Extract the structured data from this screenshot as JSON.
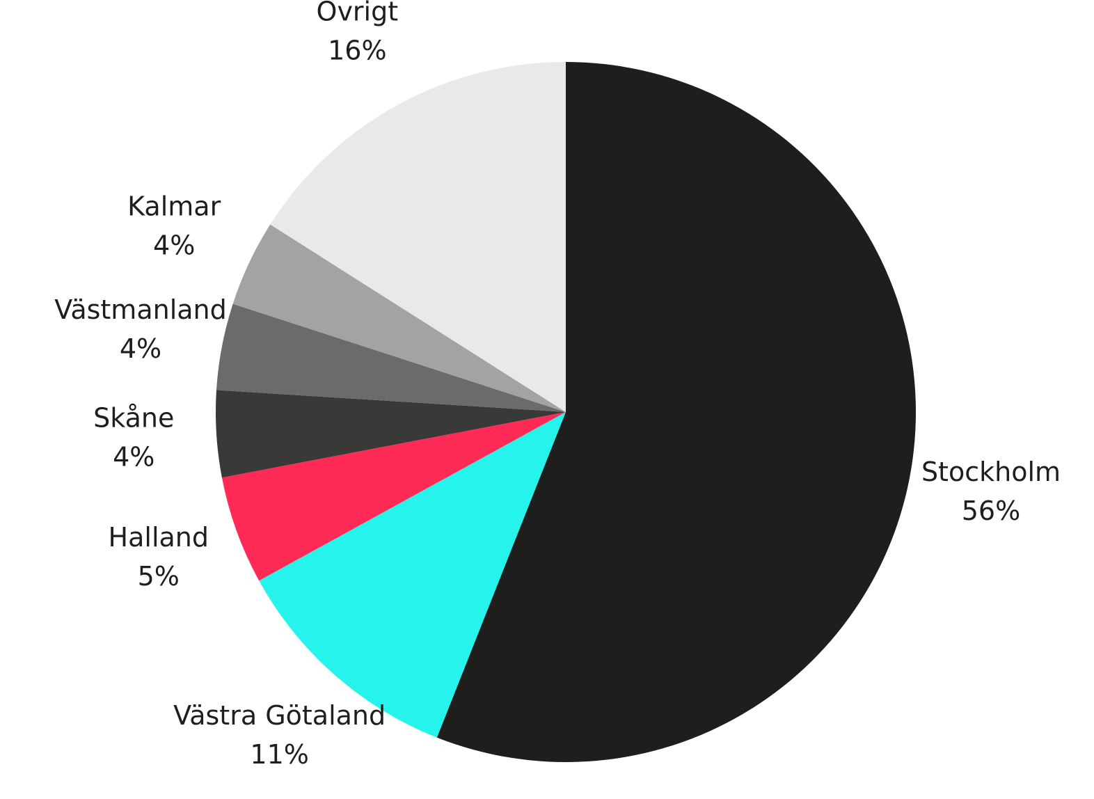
{
  "chart_data": {
    "type": "pie",
    "categories": [
      "Stockholm",
      "Västra Götaland",
      "Halland",
      "Skåne",
      "Västmanland",
      "Kalmar",
      "Övrigt"
    ],
    "values": [
      56,
      11,
      5,
      4,
      4,
      4,
      16
    ],
    "value_labels": [
      "56%",
      "11%",
      "5%",
      "4%",
      "4%",
      "4%",
      "16%"
    ],
    "colors": [
      "#1e1e1c",
      "#26f4ec",
      "#ff2b56",
      "#393937",
      "#6b6b69",
      "#a3a3a1",
      "#e9e9e7"
    ]
  }
}
